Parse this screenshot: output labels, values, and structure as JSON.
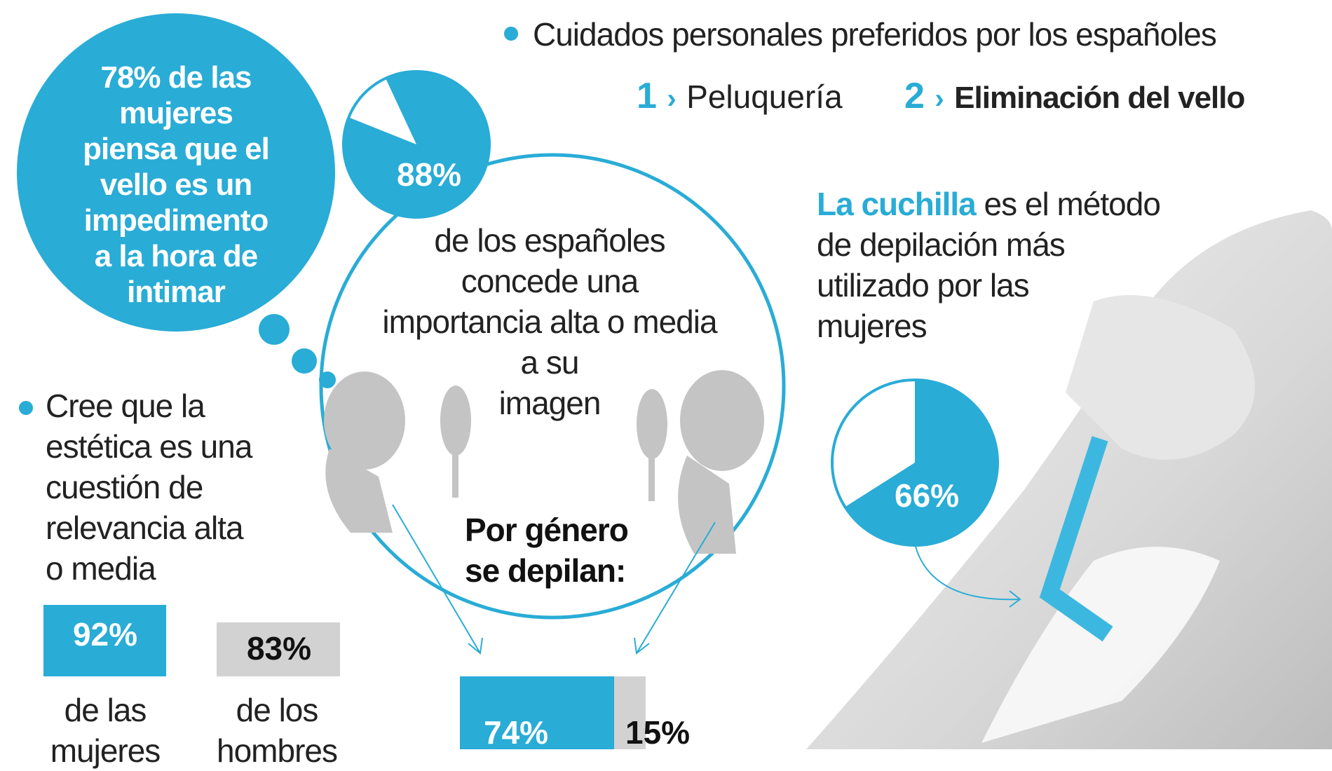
{
  "colors": {
    "accent": "#29acd6",
    "gray": "#cfcfcf",
    "text": "#222222"
  },
  "header": {
    "title": "Cuidados personales preferidos por los españoles",
    "rank1_num": "1",
    "rank1_label": "Peluquería",
    "rank2_num": "2",
    "rank2_label": "Eliminación del vello"
  },
  "bubble": {
    "lines": [
      "78% de las",
      "mujeres",
      "piensa que el",
      "vello es un",
      "impedimento",
      "a la hora de",
      "intimar"
    ]
  },
  "importance": {
    "pie_value": "88%",
    "pie_fraction": 0.88,
    "lines": [
      "de los españoles",
      "concede una",
      "importancia alta o media",
      "a su",
      "imagen"
    ]
  },
  "aesthetics": {
    "lines": [
      "Cree que la",
      "estética es una",
      "cuestión de",
      "relevancia alta",
      "o media"
    ],
    "women_value": "92%",
    "women_label_1": "de las",
    "women_label_2": "mujeres",
    "men_value": "83%",
    "men_label_1": "de los",
    "men_label_2": "hombres"
  },
  "gender": {
    "title_1": "Por género",
    "title_2": "se depilan:",
    "women_value": "74%",
    "men_value": "15%"
  },
  "razor": {
    "highlight": "La cuchilla",
    "rest_1": " es el método",
    "line2": "de depilación más",
    "line3": "utilizado por las",
    "line4": "mujeres",
    "pie_value": "66%",
    "pie_fraction": 0.66
  },
  "icons": [
    "bullet-dot-icon",
    "chevron-right-icon",
    "man-with-mirror-icon",
    "woman-with-mirror-icon",
    "razor-photo"
  ]
}
